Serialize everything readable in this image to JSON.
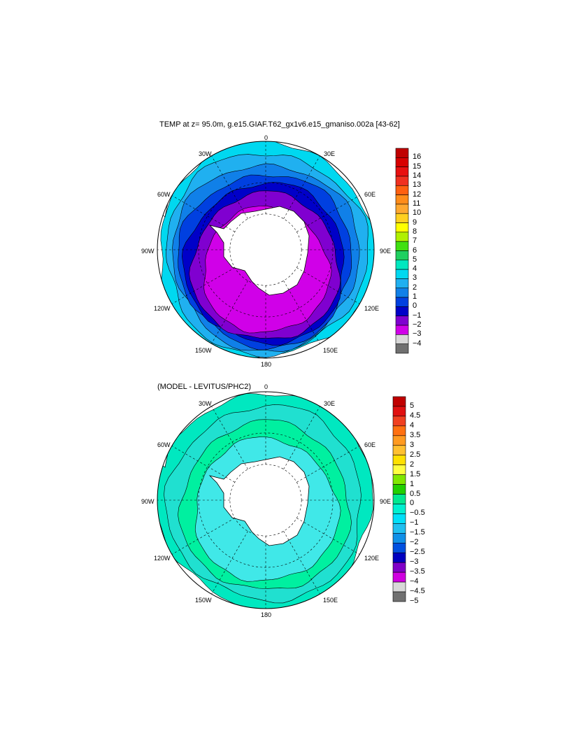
{
  "panels": [
    {
      "title": "TEMP at z=  95.0m, g.e15.GIAF.T62_gx1v6.e15_gmaniso.002a [43-62]",
      "lon_labels": {
        "top": "0",
        "top_left": "30W",
        "top_right": "30E",
        "ul": "60W",
        "ur": "60E",
        "left": "90W",
        "right": "90E",
        "ll": "120W",
        "lr": "120E",
        "bl": "150W",
        "br": "150E",
        "bottom": "180"
      },
      "colorbar": {
        "labels": [
          "16",
          "15",
          "14",
          "13",
          "12",
          "11",
          "10",
          "9",
          "8",
          "7",
          "6",
          "5",
          "4",
          "3",
          "2",
          "1",
          "0",
          "−1",
          "−2",
          "−3",
          "−4"
        ],
        "colors": [
          "#c00000",
          "#d80000",
          "#e81010",
          "#f03020",
          "#ff6010",
          "#ff8c1a",
          "#ffa830",
          "#ffd020",
          "#ffff00",
          "#b0f000",
          "#40e010",
          "#20d060",
          "#00e8c0",
          "#00d8f0",
          "#20b0f0",
          "#1080e8",
          "#0040e0",
          "#0000c8",
          "#8000d0",
          "#d000e8",
          "#d8d8d8",
          "#707070"
        ]
      },
      "rings": [
        {
          "color": "#00d8f0",
          "scale": 1.0
        },
        {
          "color": "#20b0f0",
          "scale": 0.93
        },
        {
          "color": "#1080e8",
          "scale": 0.86
        },
        {
          "color": "#0040e0",
          "scale": 0.8
        },
        {
          "color": "#0000c8",
          "scale": 0.74
        },
        {
          "color": "#8000d0",
          "scale": 0.68
        },
        {
          "color": "#d000e8",
          "scale": 0.58
        }
      ]
    },
    {
      "title": "(MODEL - LEVITUS/PHC2)",
      "lon_labels": {
        "top": "0",
        "top_left": "30W",
        "top_right": "30E",
        "ul": "60W",
        "ur": "60E",
        "left": "90W",
        "right": "90E",
        "ll": "120W",
        "lr": "120E",
        "bl": "150W",
        "br": "150E",
        "bottom": "180"
      },
      "colorbar": {
        "labels": [
          "5",
          "4.5",
          "4",
          "3.5",
          "3",
          "2.5",
          "2",
          "1.5",
          "1",
          "0.5",
          "0",
          "−0.5",
          "−1",
          "−1.5",
          "−2",
          "−2.5",
          "−3",
          "−3.5",
          "−4",
          "−4.5",
          "−5"
        ],
        "colors": [
          "#c00000",
          "#e01010",
          "#f04020",
          "#ff7010",
          "#ff9a20",
          "#ffc030",
          "#ffe000",
          "#ffff40",
          "#80e800",
          "#20d000",
          "#00e890",
          "#00f0d0",
          "#00e0f8",
          "#20c0f0",
          "#1090e8",
          "#0050e0",
          "#0000c0",
          "#8000c8",
          "#d000e0",
          "#d8d8d8",
          "#707070"
        ]
      },
      "rings": [
        {
          "color": "#00e8c0",
          "scale": 1.0
        },
        {
          "color": "#20e0d0",
          "scale": 0.9
        },
        {
          "color": "#00f0a0",
          "scale": 0.78
        },
        {
          "color": "#40e8e8",
          "scale": 0.66
        }
      ]
    }
  ]
}
